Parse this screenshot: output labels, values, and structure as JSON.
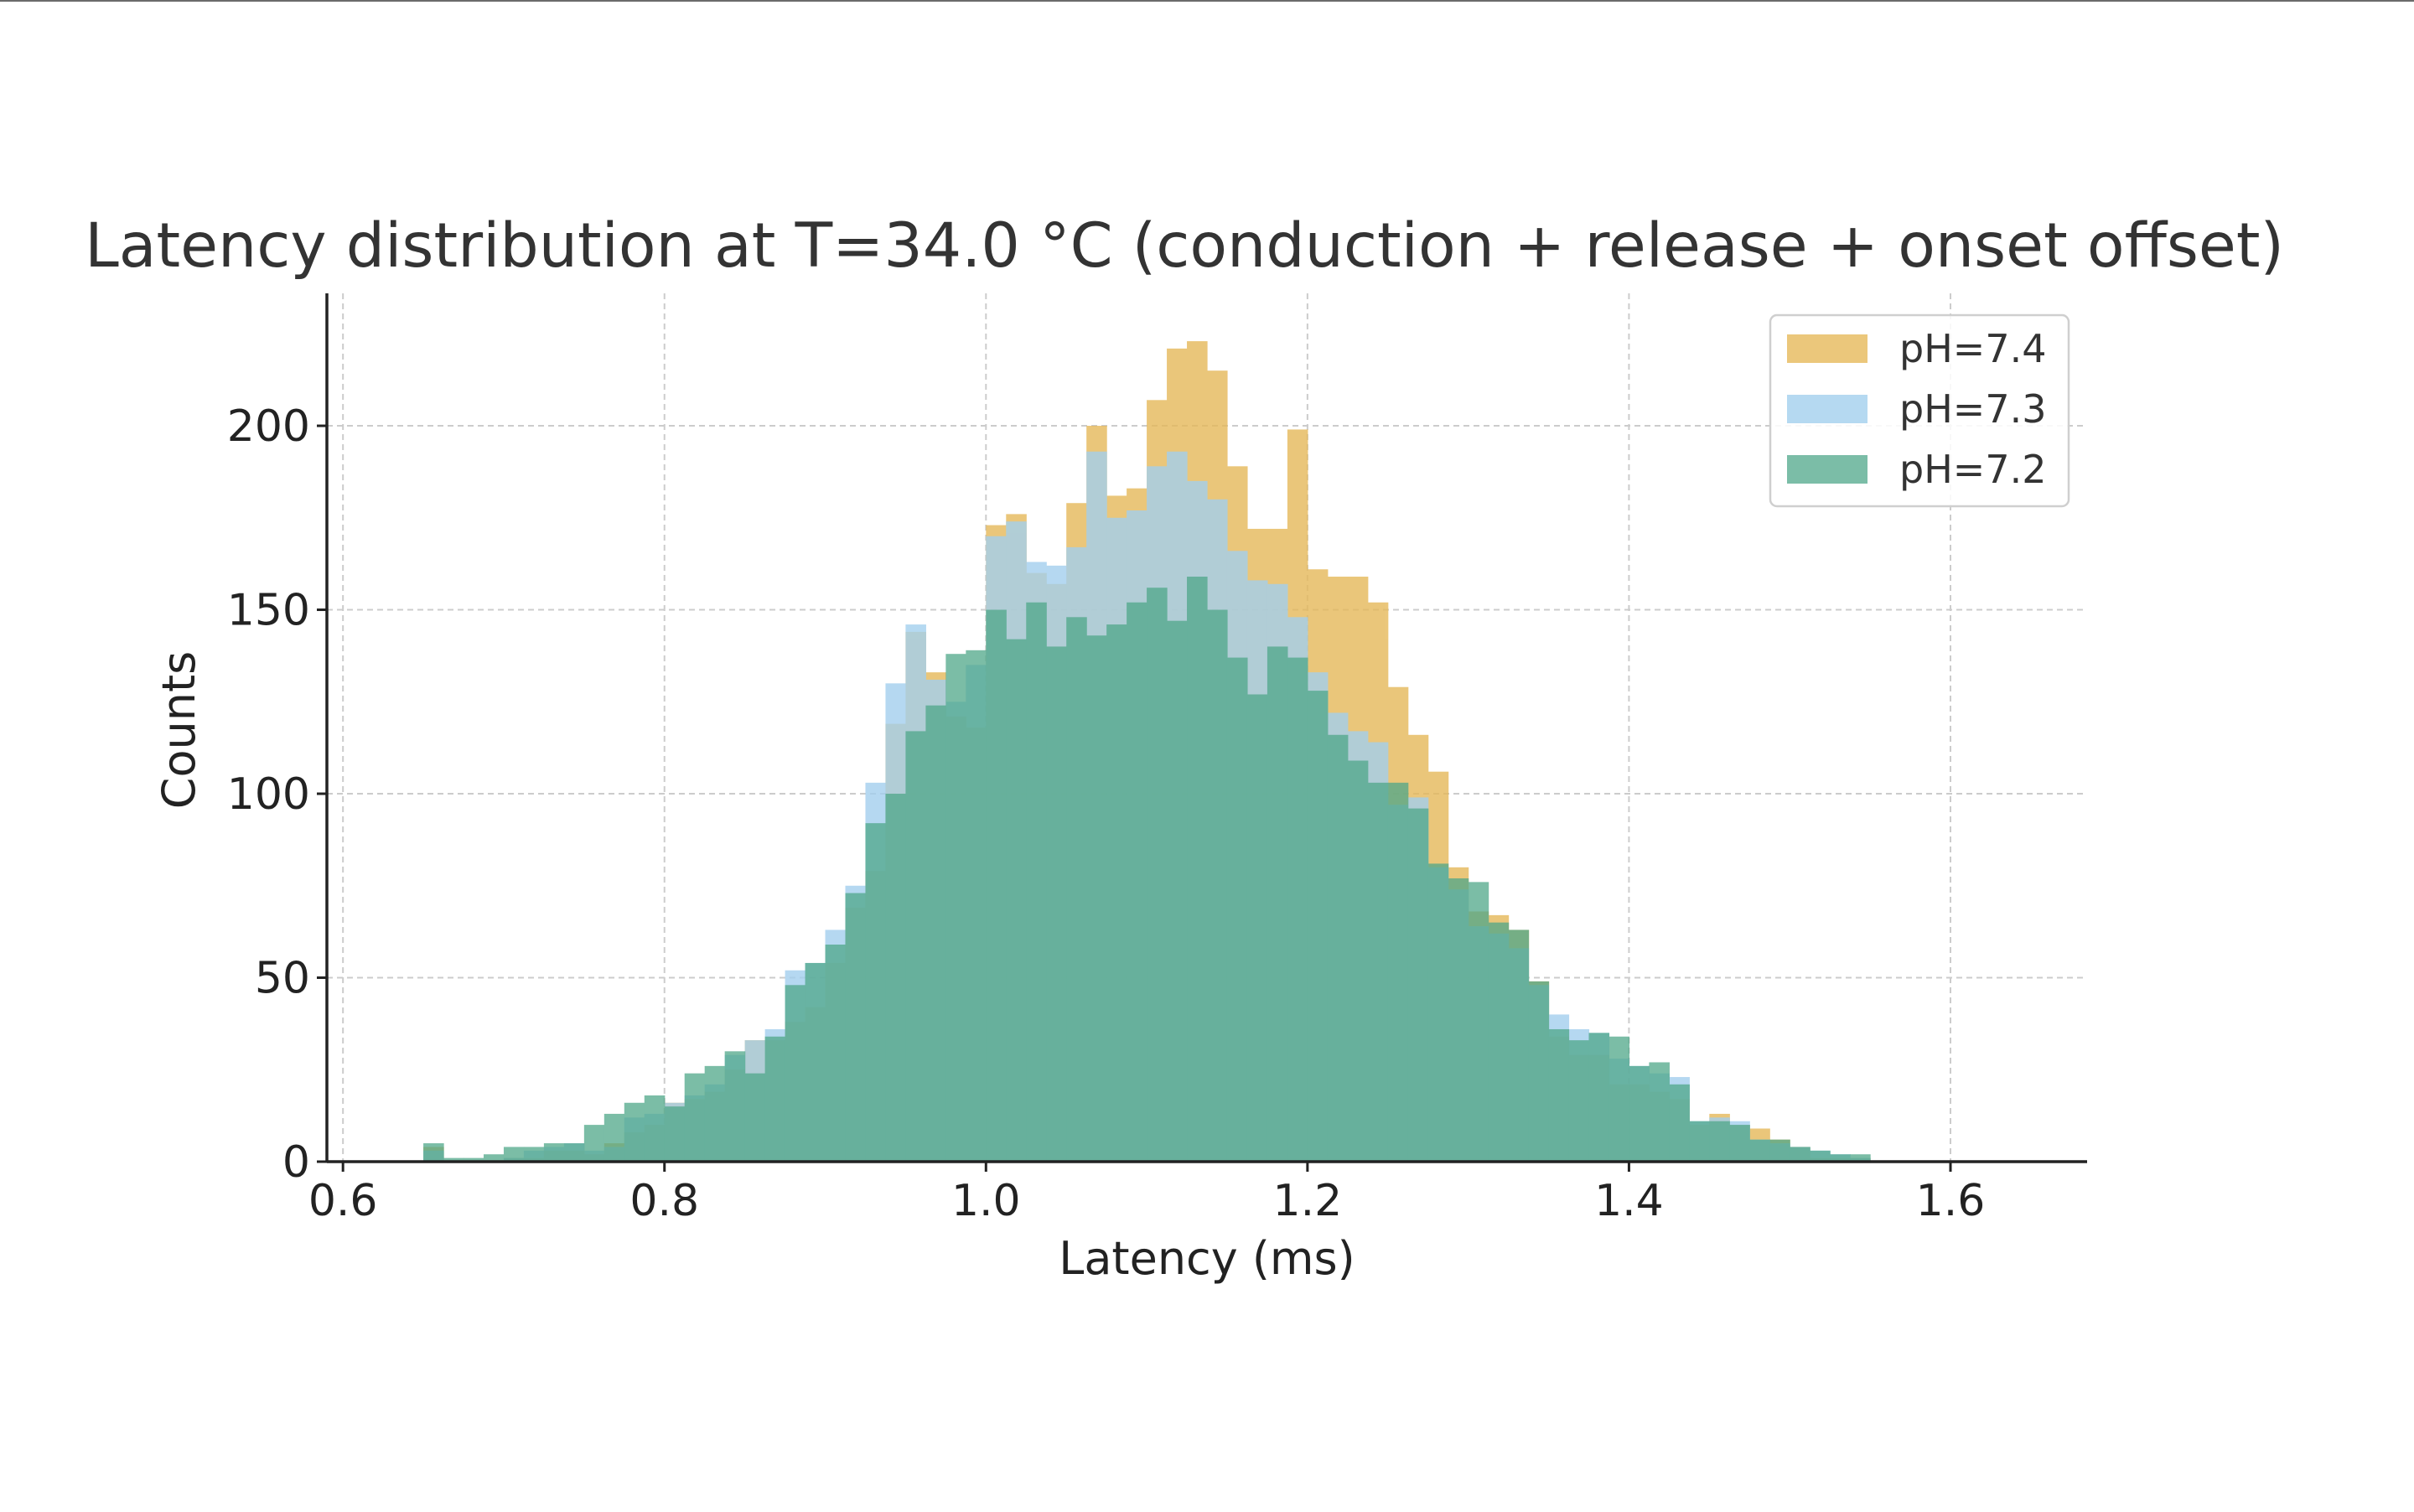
{
  "chart_data": {
    "type": "histogram",
    "title": "Latency distribution at T=34.0 °C (conduction + release + onset offset)",
    "xlabel": "Latency (ms)",
    "ylabel": "Counts",
    "xlim": [
      0.59,
      1.685
    ],
    "ylim": [
      0,
      236
    ],
    "xticks": [
      0.6,
      0.8,
      1.0,
      1.2,
      1.4,
      1.6
    ],
    "xtick_labels": [
      "0.6",
      "0.8",
      "1.0",
      "1.2",
      "1.4",
      "1.6"
    ],
    "yticks": [
      0,
      50,
      100,
      150,
      200
    ],
    "ytick_labels": [
      "0",
      "50",
      "100",
      "150",
      "200"
    ],
    "grid": true,
    "legend_position": "top-right",
    "bin_width": 0.0125,
    "bin_start": 0.6,
    "series": [
      {
        "name": "pH=7.4",
        "color": "#E6B95A",
        "values": [
          0,
          0,
          0,
          0,
          4,
          0,
          0,
          0,
          1,
          1,
          3,
          3,
          2,
          5,
          8,
          10,
          16,
          17,
          19,
          25,
          33,
          33,
          38,
          42,
          54,
          69,
          79,
          119,
          144,
          133,
          121,
          118,
          173,
          176,
          160,
          157,
          179,
          200,
          181,
          183,
          207,
          221,
          223,
          215,
          189,
          172,
          172,
          199,
          161,
          159,
          159,
          152,
          129,
          116,
          106,
          80,
          68,
          67,
          63,
          49,
          34,
          29,
          29,
          21,
          21,
          19,
          17,
          10,
          13,
          10,
          9,
          6,
          4,
          1,
          1,
          1,
          0
        ]
      },
      {
        "name": "pH=7.3",
        "color": "#A3CFEE",
        "values": [
          0,
          0,
          0,
          0,
          3,
          0,
          0,
          0,
          1,
          3,
          4,
          5,
          3,
          4,
          12,
          13,
          16,
          18,
          21,
          29,
          33,
          36,
          52,
          54,
          63,
          75,
          103,
          130,
          146,
          131,
          125,
          135,
          170,
          174,
          163,
          162,
          167,
          193,
          175,
          177,
          189,
          193,
          185,
          180,
          166,
          158,
          157,
          148,
          133,
          122,
          117,
          114,
          97,
          99,
          80,
          74,
          64,
          62,
          58,
          48,
          40,
          36,
          35,
          28,
          26,
          24,
          23,
          11,
          12,
          11,
          6,
          5,
          4,
          3,
          2,
          1,
          0
        ]
      },
      {
        "name": "pH=7.2",
        "color": "#4FA789",
        "values": [
          0,
          0,
          0,
          0,
          5,
          1,
          1,
          2,
          4,
          4,
          5,
          5,
          10,
          13,
          16,
          18,
          15,
          24,
          26,
          30,
          24,
          34,
          48,
          54,
          59,
          73,
          92,
          100,
          117,
          124,
          138,
          139,
          150,
          142,
          152,
          140,
          148,
          143,
          146,
          152,
          156,
          147,
          159,
          150,
          137,
          127,
          140,
          137,
          128,
          116,
          109,
          103,
          103,
          96,
          81,
          77,
          76,
          65,
          63,
          49,
          36,
          33,
          35,
          34,
          26,
          27,
          21,
          11,
          11,
          10,
          6,
          6,
          4,
          3,
          2,
          2,
          0
        ]
      }
    ]
  }
}
